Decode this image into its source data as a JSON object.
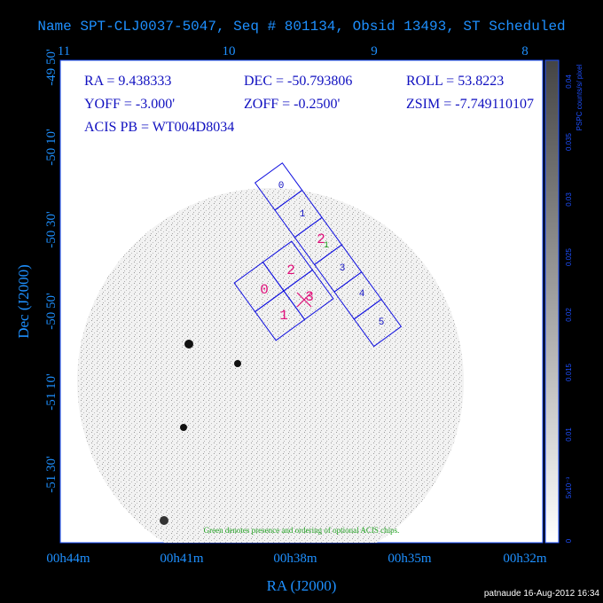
{
  "title": "Name SPT-CLJ0037-5047, Seq # 801134, Obsid 13493, ST Scheduled",
  "top_axis": {
    "ticks": [
      "11",
      "10",
      "9",
      "8"
    ]
  },
  "left_axis": {
    "label": "Dec (J2000)",
    "ticks": [
      "-49 50'",
      "-50 10'",
      "-50 30'",
      "-50 50'",
      "-51 10'",
      "-51 30'"
    ]
  },
  "bottom_axis": {
    "label": "RA (J2000)",
    "ticks": [
      "00h44m",
      "00h41m",
      "00h38m",
      "00h35m",
      "00h32m"
    ]
  },
  "info": {
    "ra": "RA = 9.438333",
    "dec": "DEC = -50.793806",
    "roll": "ROLL = 53.8223",
    "yoff": "YOFF = -3.000'",
    "zoff": "ZOFF = -0.2500'",
    "zsim": "ZSIM = -7.749110107",
    "acis": "ACIS PB = WT004D8034"
  },
  "chips_s": [
    "0",
    "1",
    "2",
    "3",
    "4",
    "5"
  ],
  "chips_i": [
    "0",
    "2",
    "1",
    "3"
  ],
  "optional_chip": "1",
  "note": "Green denotes presence and ordering of optional ACIS chips.",
  "colorbar": {
    "label": "PSPC counts/s/ pixel",
    "ticks": [
      "0",
      "5x10⁻³",
      "0.01",
      "0.015",
      "0.02",
      "0.025",
      "0.03",
      "0.035",
      "0.04"
    ]
  },
  "footer": "patnaude 16-Aug-2012 16:34"
}
